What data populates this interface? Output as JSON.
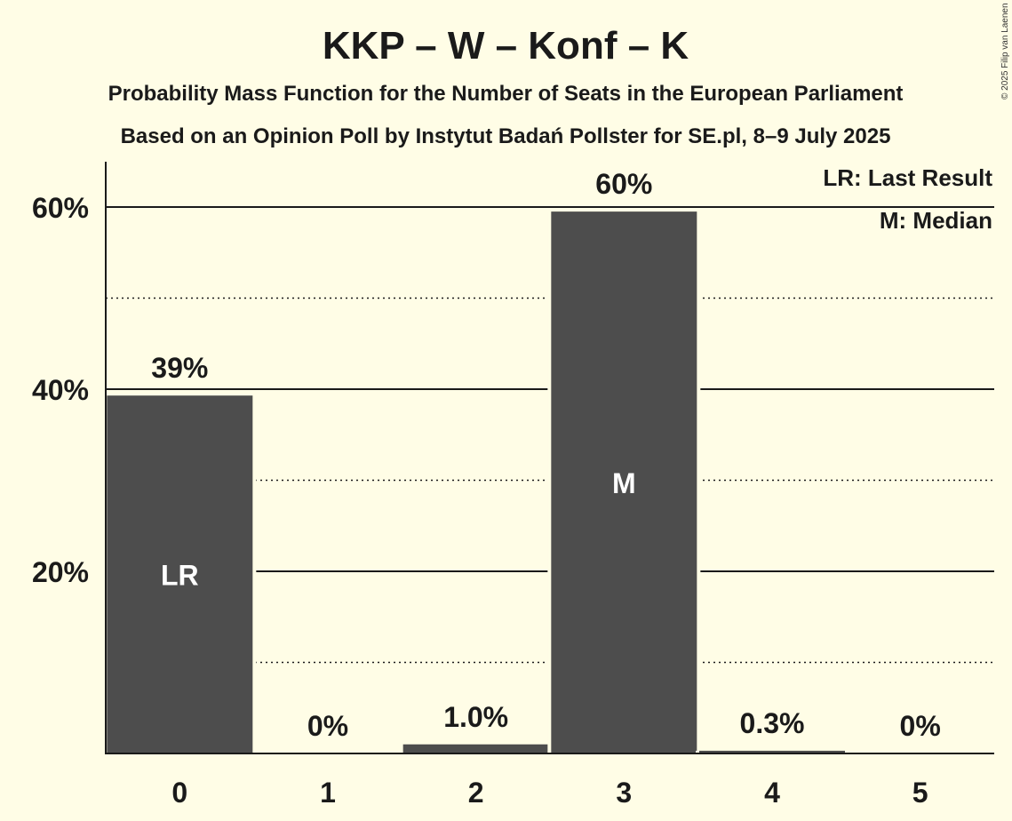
{
  "header": {
    "title": "KKP – W – Konf – K",
    "subtitle1": "Probability Mass Function for the Number of Seats in the European Parliament",
    "subtitle2": "Based on an Opinion Poll by Instytut Badań Pollster for SE.pl, 8–9 July 2025"
  },
  "copyright": "© 2025 Filip van Laenen",
  "legend": {
    "lr": "LR: Last Result",
    "m": "M: Median"
  },
  "colors": {
    "background": "#fffde6",
    "bar": "#4d4d4d",
    "text": "#1a1a1a"
  },
  "chart_data": {
    "type": "bar",
    "categories": [
      "0",
      "1",
      "2",
      "3",
      "4",
      "5"
    ],
    "values": [
      39.3,
      0,
      1.0,
      59.5,
      0.3,
      0
    ],
    "data_labels": [
      "39%",
      "0%",
      "1.0%",
      "60%",
      "0.3%",
      "0%"
    ],
    "bar_markers": [
      "LR",
      "",
      "",
      "M",
      "",
      ""
    ],
    "ylim": [
      0,
      65
    ],
    "yticks": [
      {
        "value": 20,
        "label": "20%"
      },
      {
        "value": 40,
        "label": "40%"
      },
      {
        "value": 60,
        "label": "60%"
      }
    ],
    "minor_gridlines": [
      10,
      30,
      50
    ],
    "xlabel": "",
    "ylabel": "",
    "grid": true,
    "legend_position": "top-right"
  }
}
